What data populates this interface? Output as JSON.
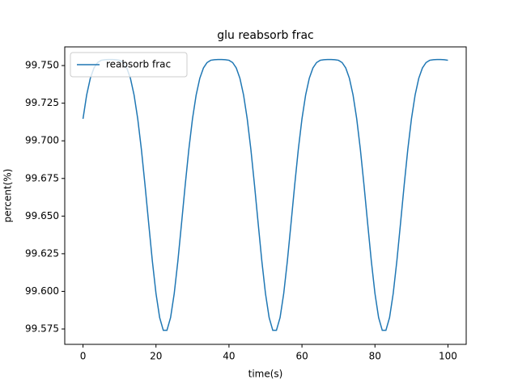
{
  "chart_data": {
    "type": "line",
    "title": "glu reabsorb frac",
    "xlabel": "time(s)",
    "ylabel": "percent(%)",
    "x": [
      0,
      1,
      2,
      3,
      4,
      5,
      6,
      7,
      8,
      9,
      10,
      11,
      12,
      13,
      14,
      15,
      16,
      17,
      18,
      19,
      20,
      21,
      22,
      23,
      24,
      25,
      26,
      27,
      28,
      29,
      30,
      31,
      32,
      33,
      34,
      35,
      36,
      37,
      38,
      39,
      40,
      41,
      42,
      43,
      44,
      45,
      46,
      47,
      48,
      49,
      50,
      51,
      52,
      53,
      54,
      55,
      56,
      57,
      58,
      59,
      60,
      61,
      62,
      63,
      64,
      65,
      66,
      67,
      68,
      69,
      70,
      71,
      72,
      73,
      74,
      75,
      76,
      77,
      78,
      79,
      80,
      81,
      82,
      83,
      84,
      85,
      86,
      87,
      88,
      89,
      90,
      91,
      92,
      93,
      94,
      95,
      96,
      97,
      98,
      99,
      100
    ],
    "series": [
      {
        "name": "reabsorb frac",
        "color": "#1f77b4",
        "values": [
          99.7146,
          99.7304,
          99.7415,
          99.7484,
          99.752,
          99.7535,
          99.7539,
          99.754,
          99.754,
          99.7539,
          99.7535,
          99.752,
          99.7484,
          99.7415,
          99.7304,
          99.7146,
          99.6943,
          99.6705,
          99.6451,
          99.6202,
          99.5986,
          99.5826,
          99.5741,
          99.5741,
          99.5826,
          99.5986,
          99.6202,
          99.6451,
          99.6705,
          99.6943,
          99.7146,
          99.7304,
          99.7415,
          99.7484,
          99.752,
          99.7535,
          99.7539,
          99.754,
          99.754,
          99.7539,
          99.7535,
          99.752,
          99.7484,
          99.7415,
          99.7304,
          99.7146,
          99.6943,
          99.6705,
          99.6451,
          99.6202,
          99.5986,
          99.5826,
          99.5741,
          99.5741,
          99.5826,
          99.5986,
          99.6202,
          99.6451,
          99.6705,
          99.6943,
          99.7146,
          99.7304,
          99.7415,
          99.7484,
          99.752,
          99.7535,
          99.7539,
          99.754,
          99.754,
          99.7539,
          99.7535,
          99.752,
          99.7484,
          99.7415,
          99.7304,
          99.7146,
          99.6943,
          99.6705,
          99.6451,
          99.6202,
          99.5986,
          99.5826,
          99.5741,
          99.5741,
          99.5826,
          99.5986,
          99.6202,
          99.6451,
          99.6705,
          99.6943,
          99.7146,
          99.7304,
          99.7415,
          99.7484,
          99.752,
          99.7535,
          99.7539,
          99.754,
          99.754,
          99.7539,
          99.7535
        ]
      }
    ],
    "xlim": [
      -5,
      105
    ],
    "xticks": [
      0,
      20,
      40,
      60,
      80,
      100
    ],
    "ylim": [
      99.5648,
      99.7624
    ],
    "yticks": [
      99.575,
      {
        "value": 99.6,
        "label": "99.600"
      },
      99.625,
      {
        "value": 99.65,
        "label": "99.650"
      },
      99.675,
      {
        "value": 99.7,
        "label": "99.700"
      },
      99.725,
      {
        "value": 99.75,
        "label": "99.750"
      }
    ],
    "legend": "upper left",
    "grid": false
  }
}
